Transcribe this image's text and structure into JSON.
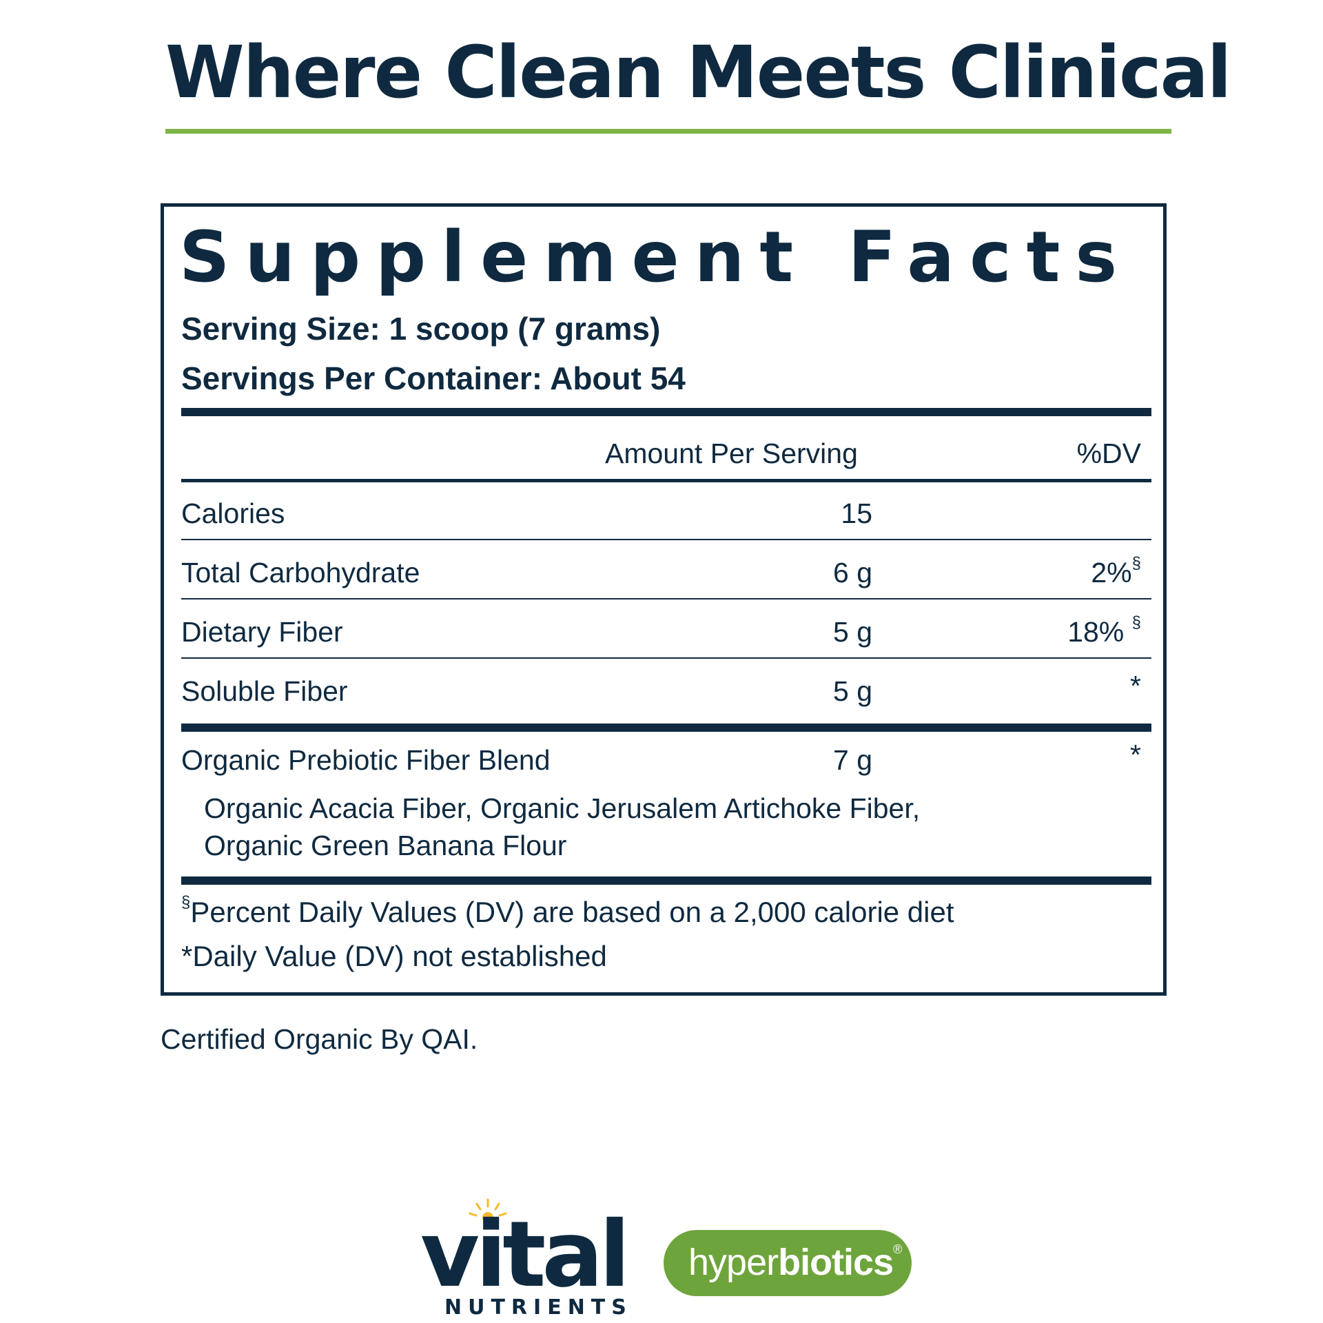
{
  "header": {
    "headline": "Where Clean Meets Clinical"
  },
  "facts": {
    "title": "Supplement Facts",
    "serving_size": "Serving Size: 1 scoop (7 grams)",
    "servings_per_container": "Servings Per Container: About 54",
    "col_amount": "Amount Per Serving",
    "col_dv": "%DV",
    "rows": [
      {
        "name": "Calories",
        "amount": "15",
        "dv": ""
      },
      {
        "name": "Total Carbohydrate",
        "amount": "6 g",
        "dv": "2%",
        "dv_mark": "§"
      },
      {
        "name": "Dietary Fiber",
        "amount": "5 g",
        "dv": "18% ",
        "dv_mark": "§"
      },
      {
        "name": "Soluble Fiber",
        "amount": "5 g",
        "dv": "*"
      }
    ],
    "blend": {
      "name": "Organic Prebiotic Fiber Blend",
      "amount": "7 g",
      "dv": "*",
      "ingredients_line1": "Organic Acacia Fiber, Organic Jerusalem Artichoke Fiber,",
      "ingredients_line2": "Organic Green Banana Flour"
    },
    "footnote_mark": "§",
    "footnote1": "Percent Daily Values (DV) are based on a 2,000 calorie diet",
    "footnote2": "*Daily Value (DV) not established"
  },
  "certification": "Certified Organic By QAI.",
  "brands": {
    "vital_word": "vital",
    "nutrients_word": "NUTRIENTS",
    "hyper_light": "hyper",
    "hyper_bold": "biotics",
    "hyper_mark": "®"
  },
  "colors": {
    "navy": "#0f2a40",
    "green_rule": "#7db548",
    "hyperbiotics_green": "#6ea43c",
    "sun_yellow": "#f5b92a"
  }
}
